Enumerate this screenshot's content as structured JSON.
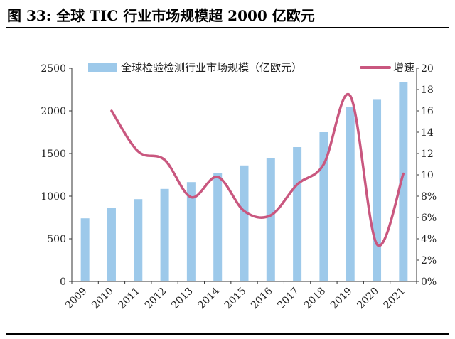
{
  "figure": {
    "title": "图 33: 全球 TIC 行业市场规模超 2000 亿欧元"
  },
  "chart_data": {
    "type": "bar",
    "title": "图 33: 全球 TIC 行业市场规模超 2000 亿欧元",
    "categories": [
      "2009",
      "2010",
      "2011",
      "2012",
      "2013",
      "2014",
      "2015",
      "2016",
      "2017",
      "2018",
      "2019",
      "2020",
      "2021"
    ],
    "series": [
      {
        "name": "全球检验检测行业市场规模（亿欧元）",
        "type": "bar",
        "axis": "left",
        "color": "#9dc9ea",
        "values": [
          740,
          860,
          965,
          1085,
          1165,
          1275,
          1360,
          1445,
          1575,
          1750,
          2045,
          2130,
          2340
        ]
      },
      {
        "name": "增速",
        "type": "line",
        "axis": "right",
        "color": "#c9577f",
        "values": [
          null,
          16.0,
          12.2,
          11.4,
          7.9,
          9.8,
          6.6,
          6.2,
          9.1,
          11.0,
          17.4,
          3.5,
          10.1
        ]
      }
    ],
    "y_left": {
      "range": [
        0,
        2500
      ],
      "ticks": [
        "0",
        "500",
        "1000",
        "1500",
        "2000",
        "2500"
      ]
    },
    "y_right": {
      "range": [
        0,
        20
      ],
      "ticks": [
        "0%",
        "2%",
        "4%",
        "6%",
        "8%",
        "10",
        "12",
        "14",
        "16",
        "18",
        "20"
      ]
    },
    "legend": "top",
    "grid": false
  }
}
